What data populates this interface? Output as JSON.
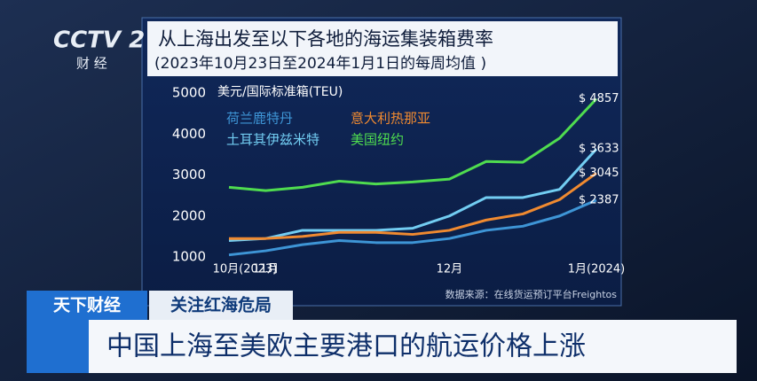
{
  "broadcast": {
    "logo": "CCTV 2",
    "channel": "财 经",
    "program": "天下财经",
    "topic": "关注红海危局",
    "headline": "中国上海至美欧主要港口的航运价格上涨"
  },
  "chart_data": {
    "type": "line",
    "title": "从上海出发至以下各地的海运集装箱费率",
    "subtitle": "(2023年10月23日至2024年1月1日的每周均值 )",
    "y_label": "美元/国际标准箱(TEU)",
    "source": "数据来源：在线货运预订平台Freightos",
    "categories": [
      "10月(2023)",
      "11月",
      null,
      null,
      null,
      null,
      "12月",
      null,
      null,
      null,
      "1月(2024)"
    ],
    "series": [
      {
        "name": "荷兰鹿特丹",
        "color": "#3e95d6",
        "values": [
          1050,
          1150,
          1300,
          1400,
          1350,
          1350,
          1450,
          1650,
          1750,
          2000,
          2387
        ],
        "value_labels": [
          null,
          null,
          null,
          null,
          null,
          null,
          null,
          null,
          null,
          null,
          "$ 2387"
        ]
      },
      {
        "name": "土耳其伊兹米特",
        "color": "#72cdf2",
        "values": [
          1400,
          1450,
          1650,
          1650,
          1650,
          1700,
          2000,
          2450,
          2450,
          2650,
          3633
        ],
        "value_labels": [
          null,
          null,
          null,
          null,
          null,
          null,
          null,
          null,
          null,
          null,
          "$ 3633"
        ]
      },
      {
        "name": "意大利热那亚",
        "color": "#f08a30",
        "values": [
          1450,
          1450,
          1500,
          1600,
          1600,
          1550,
          1650,
          1900,
          2050,
          2400,
          3045
        ],
        "value_labels": [
          null,
          null,
          null,
          null,
          null,
          null,
          null,
          null,
          null,
          null,
          "$ 3045"
        ]
      },
      {
        "name": "美国纽约",
        "color": "#4fdc4f",
        "values": [
          2700,
          2620,
          2700,
          2850,
          2780,
          2830,
          2900,
          3330,
          3310,
          3900,
          4857
        ],
        "value_labels": [
          null,
          null,
          null,
          null,
          null,
          null,
          null,
          null,
          null,
          null,
          "$ 4857"
        ]
      }
    ],
    "ylim": [
      1000,
      5000
    ],
    "yticks": [
      1000,
      2000,
      3000,
      4000,
      5000
    ]
  }
}
